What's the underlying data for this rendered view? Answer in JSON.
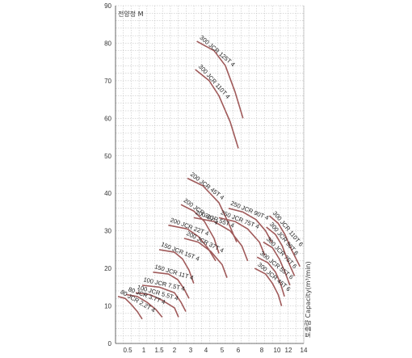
{
  "chart_data": {
    "type": "line",
    "ylabel": "전양정 M",
    "xlabel": "토출량 Capacity(m³/min)",
    "ylim": [
      0,
      90
    ],
    "y_ticks": [
      "0",
      "10",
      "20",
      "30",
      "40",
      "50",
      "60",
      "70",
      "80",
      "90"
    ],
    "x_ticks": [
      "0.5",
      "1",
      "1.5",
      "2",
      "3",
      "4",
      "5",
      "6",
      "8",
      "10",
      "12",
      "14"
    ],
    "grid": true,
    "line_color": "#a05a5a",
    "series": [
      {
        "name": "300 JCR 125T 4",
        "points": [
          [
            3.4,
            80.5
          ],
          [
            4.5,
            78
          ],
          [
            5.2,
            74
          ],
          [
            5.8,
            67
          ],
          [
            6.4,
            60
          ]
        ]
      },
      {
        "name": "300 JCR 110T 4",
        "points": [
          [
            3.3,
            73
          ],
          [
            4.2,
            70
          ],
          [
            4.8,
            66
          ],
          [
            5.5,
            59
          ],
          [
            6.0,
            52
          ]
        ]
      },
      {
        "name": "200 JCR 45T 4",
        "points": [
          [
            2.8,
            44
          ],
          [
            3.8,
            42
          ],
          [
            4.8,
            37.5
          ],
          [
            5.4,
            32
          ],
          [
            5.9,
            27
          ]
        ]
      },
      {
        "name": "200 JCR 30T 4",
        "points": [
          [
            2.4,
            37
          ],
          [
            3.2,
            35.3
          ],
          [
            3.9,
            32.5
          ],
          [
            4.5,
            28
          ],
          [
            4.8,
            24
          ]
        ]
      },
      {
        "name": "200 JCR 22T 4",
        "points": [
          [
            1.8,
            31.5
          ],
          [
            2.8,
            30.5
          ],
          [
            3.5,
            28.5
          ],
          [
            4.1,
            25.5
          ],
          [
            4.6,
            22
          ]
        ]
      },
      {
        "name": "250 JCR 90T 4",
        "points": [
          [
            5.4,
            36
          ],
          [
            6.4,
            35
          ],
          [
            7.5,
            33
          ],
          [
            8.5,
            30
          ],
          [
            9.3,
            27
          ]
        ]
      },
      {
        "name": "250 JCR 75T 4",
        "points": [
          [
            4.8,
            33.5
          ],
          [
            5.8,
            32.5
          ],
          [
            6.8,
            30.5
          ],
          [
            7.8,
            27
          ],
          [
            8.4,
            23.5
          ]
        ]
      },
      {
        "name": "200 JCR 55T 4",
        "points": [
          [
            3.2,
            33.5
          ],
          [
            4.5,
            32.5
          ],
          [
            5.5,
            30
          ],
          [
            6.3,
            26
          ],
          [
            6.8,
            22
          ]
        ]
      },
      {
        "name": "200 JCR 37T 4",
        "points": [
          [
            2.6,
            28
          ],
          [
            3.5,
            27
          ],
          [
            4.3,
            24.5
          ],
          [
            5.0,
            21
          ],
          [
            5.3,
            17.5
          ]
        ]
      },
      {
        "name": "150 JCR 15T 4",
        "points": [
          [
            1.5,
            25
          ],
          [
            2.0,
            24.3
          ],
          [
            2.5,
            22.5
          ],
          [
            2.9,
            19.5
          ],
          [
            3.2,
            16
          ]
        ]
      },
      {
        "name": "150 JCR 11T 4",
        "points": [
          [
            1.3,
            19
          ],
          [
            1.8,
            18.5
          ],
          [
            2.2,
            17
          ],
          [
            2.6,
            14.5
          ],
          [
            2.9,
            12
          ]
        ]
      },
      {
        "name": "300 JCR 110T 6",
        "points": [
          [
            9.0,
            34
          ],
          [
            10.2,
            32
          ],
          [
            11.4,
            29
          ],
          [
            12.4,
            25
          ],
          [
            13.5,
            20.5
          ]
        ]
      },
      {
        "name": "300 JCR 90T 6",
        "points": [
          [
            8.6,
            31
          ],
          [
            9.8,
            29
          ],
          [
            10.9,
            26
          ],
          [
            11.9,
            22
          ],
          [
            12.8,
            18
          ]
        ]
      },
      {
        "name": "300 JCR 75T 6",
        "points": [
          [
            8.2,
            27
          ],
          [
            9.4,
            25.5
          ],
          [
            10.4,
            22.5
          ],
          [
            11.4,
            19
          ],
          [
            12.2,
            15.5
          ]
        ]
      },
      {
        "name": "300 JCR 55T 6",
        "points": [
          [
            7.6,
            23
          ],
          [
            8.8,
            21.5
          ],
          [
            9.8,
            19
          ],
          [
            10.6,
            16
          ],
          [
            11.3,
            12.5
          ]
        ]
      },
      {
        "name": "300 JCR 45T 6",
        "points": [
          [
            7.4,
            20
          ],
          [
            8.5,
            18.5
          ],
          [
            9.4,
            16
          ],
          [
            10.2,
            13
          ],
          [
            10.8,
            10
          ]
        ]
      },
      {
        "name": "100 JCR 7.5T 4",
        "points": [
          [
            0.95,
            15.5
          ],
          [
            1.5,
            15
          ],
          [
            2.0,
            13.5
          ],
          [
            2.4,
            11
          ],
          [
            2.7,
            8.5
          ]
        ]
      },
      {
        "name": "100 JCR 5.5T 4",
        "points": [
          [
            0.75,
            13.5
          ],
          [
            1.2,
            13
          ],
          [
            1.6,
            11.5
          ],
          [
            2.0,
            9.5
          ],
          [
            2.25,
            7
          ]
        ]
      },
      {
        "name": "80 JCR 3.7T 4",
        "points": [
          [
            0.45,
            13
          ],
          [
            0.8,
            12.5
          ],
          [
            1.1,
            11
          ],
          [
            1.4,
            9
          ],
          [
            1.6,
            7
          ]
        ]
      },
      {
        "name": "80 JCR 2.2T 4",
        "points": [
          [
            0.1,
            12.5
          ],
          [
            0.4,
            12
          ],
          [
            0.6,
            10.5
          ],
          [
            0.8,
            8.5
          ],
          [
            0.95,
            6.5
          ]
        ]
      }
    ]
  }
}
